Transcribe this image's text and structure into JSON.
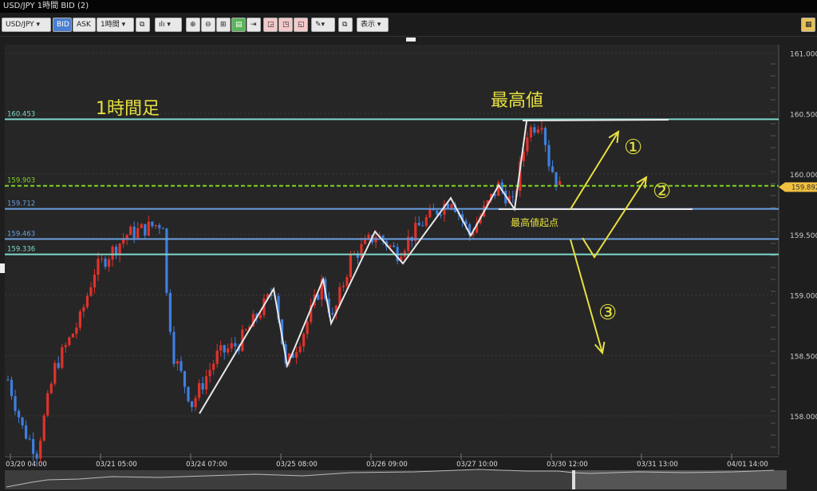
{
  "window": {
    "title": "USD/JPY 1時間 BID (2)"
  },
  "toolbar": {
    "symbol": "USD/JPY ▾",
    "bid": "BID",
    "ask": "ASK",
    "timeframe": "1時間 ▾",
    "chart_type": "▾",
    "display": "表示 ▾"
  },
  "chart_data": {
    "type": "candlestick",
    "y_ticks": [
      "161.000",
      "160.500",
      "160.000",
      "159.500",
      "159.000",
      "158.500",
      "158.000"
    ],
    "y_tick_values": [
      161.0,
      160.5,
      160.0,
      159.5,
      159.0,
      158.5,
      158.0
    ],
    "ylim": [
      157.7,
      161.1
    ],
    "x_ticks": [
      "03/20 04:00",
      "03/21 05:00",
      "03/24 07:00",
      "03/25 08:00",
      "03/26 09:00",
      "03/27 10:00",
      "03/30 12:00",
      "03/31 13:00",
      "04/01 14:00"
    ],
    "bars_per_x_tick": 25,
    "price_waypoints": [
      [
        0,
        158.3
      ],
      [
        4,
        157.9
      ],
      [
        8,
        157.7
      ],
      [
        13,
        158.4
      ],
      [
        20,
        158.8
      ],
      [
        24,
        159.2
      ],
      [
        33,
        159.5
      ],
      [
        43,
        159.6
      ],
      [
        44,
        159.0
      ],
      [
        46,
        158.5
      ],
      [
        51,
        158.1
      ],
      [
        58,
        158.5
      ],
      [
        64,
        158.6
      ],
      [
        74,
        159.05
      ],
      [
        77,
        158.4
      ],
      [
        82,
        158.7
      ],
      [
        87,
        159.1
      ],
      [
        90,
        158.8
      ],
      [
        95,
        159.3
      ],
      [
        102,
        159.5
      ],
      [
        108,
        159.35
      ],
      [
        115,
        159.6
      ],
      [
        123,
        159.8
      ],
      [
        128,
        159.5
      ],
      [
        136,
        159.9
      ],
      [
        140,
        159.75
      ],
      [
        144,
        160.35
      ],
      [
        148,
        160.45
      ],
      [
        150,
        160.1
      ],
      [
        153,
        159.89
      ]
    ],
    "current_price": "159.892",
    "horizontal_lines": [
      {
        "label": "160.453",
        "value": 160.453,
        "color": "#7fd8cc"
      },
      {
        "label": "159.903",
        "value": 159.903,
        "color": "#7ed321",
        "dashed": true
      },
      {
        "label": "159.712",
        "value": 159.712,
        "color": "#6a9fe0"
      },
      {
        "label": "159.463",
        "value": 159.463,
        "color": "#6a9fe0"
      },
      {
        "label": "159.336",
        "value": 159.336,
        "color": "#7fd8cc"
      }
    ],
    "colors": {
      "up": "#e0322c",
      "down": "#3d7fe0",
      "annotation": "#e6e040",
      "zigzag": "#e8e8e8"
    }
  },
  "annotations": {
    "timeframe_label": "1時間足",
    "high_label": "最高値",
    "high_origin_label": "最高値起点",
    "scenario1": "①",
    "scenario2": "②",
    "scenario3": "③"
  }
}
